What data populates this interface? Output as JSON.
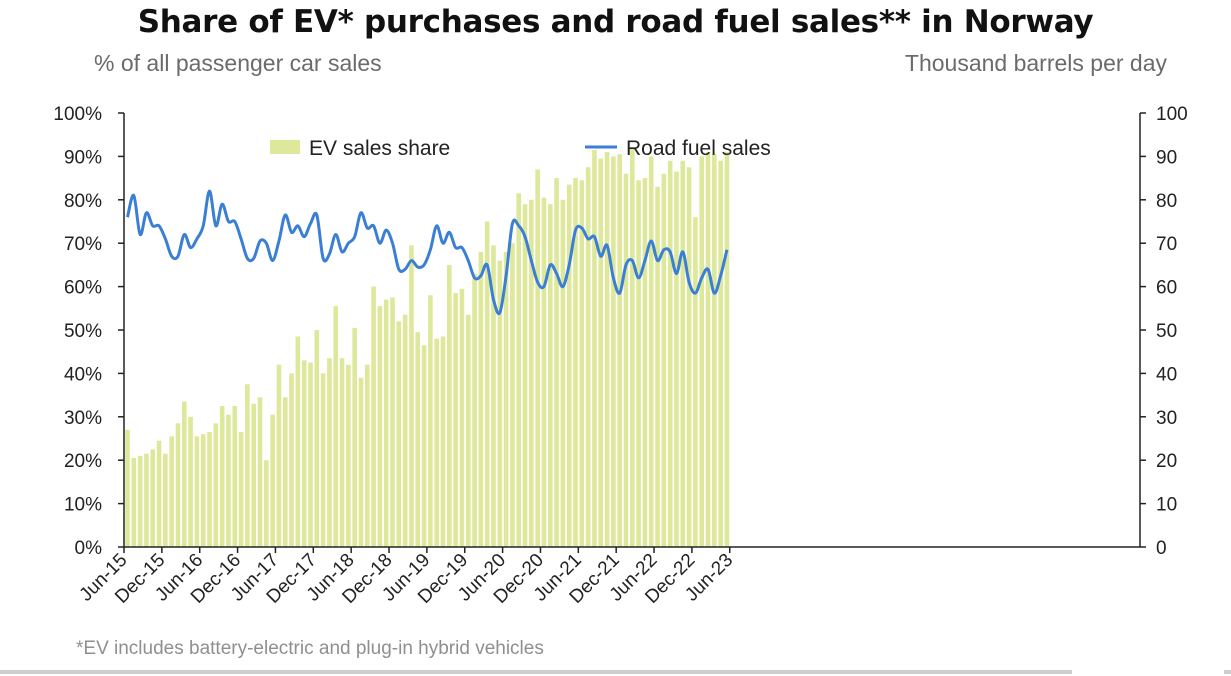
{
  "title": "Share of EV* purchases and road fuel sales** in Norway",
  "left_subtitle": "% of all passenger car sales",
  "right_subtitle": "Thousand barrels per day",
  "footnote": "*EV includes battery-electric and plug-in hybrid vehicles",
  "colors": {
    "bar": "#dde89b",
    "line": "#3b7fd4",
    "axis": "#222222",
    "subtitle": "#6b6b6b"
  },
  "chart_data": {
    "type": "bar+line",
    "x_tick_labels": [
      "Jun-15",
      "Dec-15",
      "Jun-16",
      "Dec-16",
      "Jun-17",
      "Dec-17",
      "Jun-18",
      "Dec-18",
      "Jun-19",
      "Dec-19",
      "Jun-20",
      "Dec-20",
      "Jun-21",
      "Dec-21",
      "Jun-22",
      "Dec-22",
      "Jun-23"
    ],
    "y_left": {
      "label": "% of all passenger car sales",
      "min": 0,
      "max": 100,
      "ticks": [
        "0%",
        "10%",
        "20%",
        "30%",
        "40%",
        "50%",
        "60%",
        "70%",
        "80%",
        "90%",
        "100%"
      ]
    },
    "y_right": {
      "label": "Thousand barrels per day",
      "min": 0,
      "max": 100,
      "ticks": [
        "0",
        "10",
        "20",
        "30",
        "40",
        "50",
        "60",
        "70",
        "80",
        "90",
        "100"
      ]
    },
    "legend": {
      "bar_label": "EV sales share",
      "line_label": "Road fuel sales",
      "placement": "top-center"
    },
    "series": [
      {
        "name": "EV sales share",
        "type": "bar",
        "axis": "left",
        "start": "Jun-15",
        "values": [
          27,
          20.5,
          21,
          21.5,
          22.5,
          24.5,
          21.5,
          25.5,
          28.5,
          33.5,
          30,
          25.5,
          26,
          26.5,
          28.5,
          32.5,
          30.5,
          32.5,
          26.5,
          37.5,
          33,
          34.5,
          20,
          30.5,
          42,
          34.5,
          40,
          48.5,
          43,
          42.5,
          50,
          40,
          43.5,
          55.5,
          43.5,
          42,
          50.5,
          39,
          42,
          60,
          55.5,
          57,
          57.5,
          52,
          53.5,
          69.5,
          49.5,
          46.5,
          58,
          48,
          48.5,
          65,
          58.5,
          59.5,
          53.5,
          63,
          68,
          75,
          69.5,
          66,
          68,
          70,
          81.5,
          79,
          80,
          87,
          80.5,
          79,
          85,
          80,
          83.5,
          85,
          84.5,
          87.5,
          91.5,
          89.5,
          91,
          90,
          90.5,
          86,
          92,
          84.5,
          85,
          90,
          83,
          86,
          89,
          86.5,
          89,
          87.5,
          76,
          90,
          91,
          90.5,
          89,
          91
        ]
      },
      {
        "name": "Road fuel sales",
        "type": "line",
        "axis": "right",
        "start": "Jun-15",
        "values": [
          76,
          81,
          72,
          77,
          74,
          74,
          71,
          67,
          67,
          72,
          69,
          71,
          74,
          82,
          74,
          79,
          75,
          75,
          71,
          66.5,
          66.5,
          70.5,
          70,
          66,
          70.5,
          76.5,
          72.5,
          74,
          71.5,
          74.5,
          76.5,
          66.5,
          67.5,
          72,
          68,
          70,
          71.5,
          77,
          73.5,
          74,
          70,
          73,
          70,
          64,
          64,
          66,
          64.5,
          65,
          68.5,
          74,
          70,
          72.5,
          69,
          69,
          66,
          62,
          62.5,
          65,
          57,
          54,
          62.5,
          74.5,
          74,
          71.5,
          66,
          61,
          60,
          65,
          63,
          60,
          65,
          73,
          73.5,
          71,
          71.5,
          67,
          69.5,
          62,
          58.5,
          65,
          66,
          62,
          66,
          70.5,
          66,
          68.5,
          68,
          63,
          68,
          61,
          58.5,
          62,
          64,
          58.5,
          62.5,
          68.5
        ]
      }
    ]
  }
}
